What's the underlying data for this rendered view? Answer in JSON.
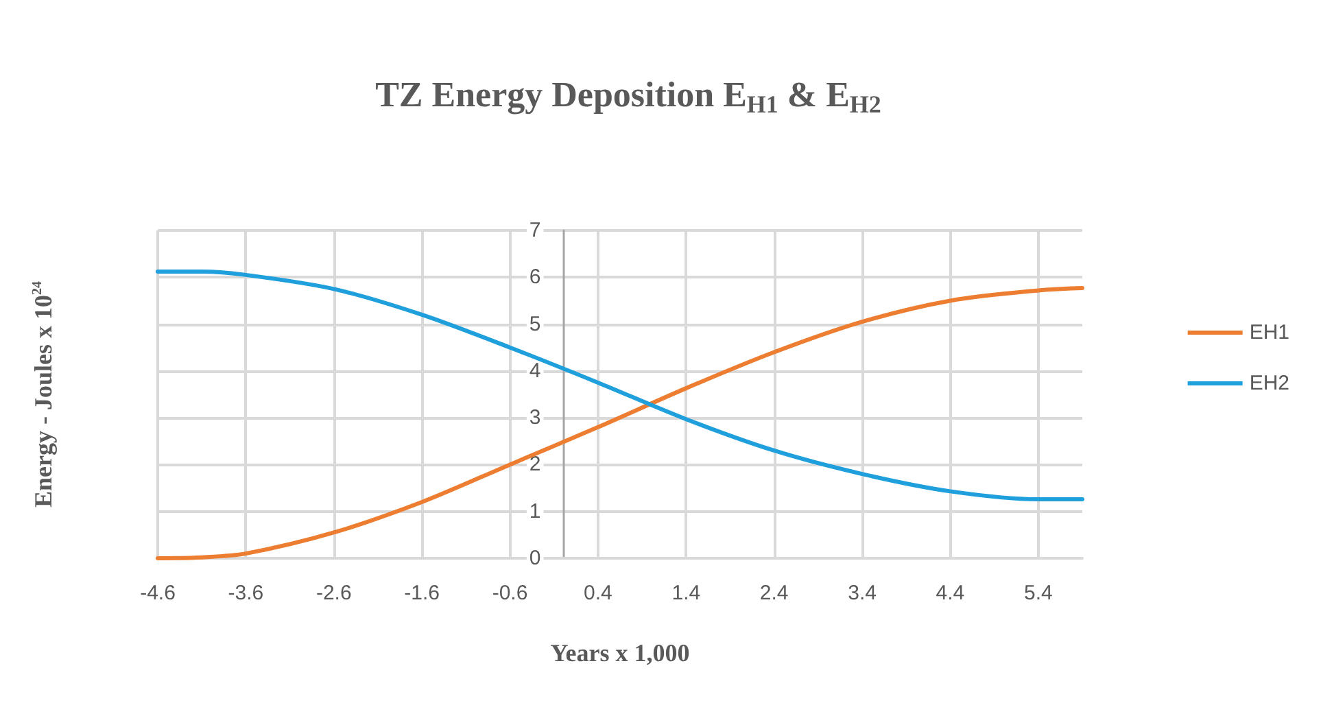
{
  "chart_data": {
    "type": "line",
    "title": "TZ Energy Deposition E$_{H1}$ & E$_{H2}$",
    "xlabel": "Years x 1,000",
    "ylabel": "Energy - Joules x 10$^{24}$",
    "x": [
      -4.6,
      -4.1,
      -3.6,
      -2.6,
      -1.6,
      -0.6,
      0.4,
      1.4,
      2.4,
      3.4,
      4.4,
      5.4,
      5.9
    ],
    "series": [
      {
        "name": "EH1",
        "color": "#ed7d31",
        "values": [
          0,
          0.02,
          0.1,
          0.55,
          1.2,
          2.0,
          2.8,
          3.63,
          4.4,
          5.05,
          5.5,
          5.72,
          5.77
        ]
      },
      {
        "name": "EH2",
        "color": "#1fa0dc",
        "values": [
          6.12,
          6.12,
          6.05,
          5.75,
          5.2,
          4.5,
          3.75,
          2.97,
          2.3,
          1.8,
          1.43,
          1.26,
          1.26
        ]
      }
    ],
    "xlim": [
      -4.6,
      5.9
    ],
    "xticks": [
      -4.6,
      -3.6,
      -2.6,
      -1.6,
      -0.6,
      0.4,
      1.4,
      2.4,
      3.4,
      4.4,
      5.4
    ],
    "ylim": [
      0,
      7
    ],
    "yticks": [
      0,
      1,
      2,
      3,
      4,
      5,
      6,
      7
    ],
    "grid": true,
    "legend": "right",
    "marker": "none",
    "line_style": "solid"
  }
}
